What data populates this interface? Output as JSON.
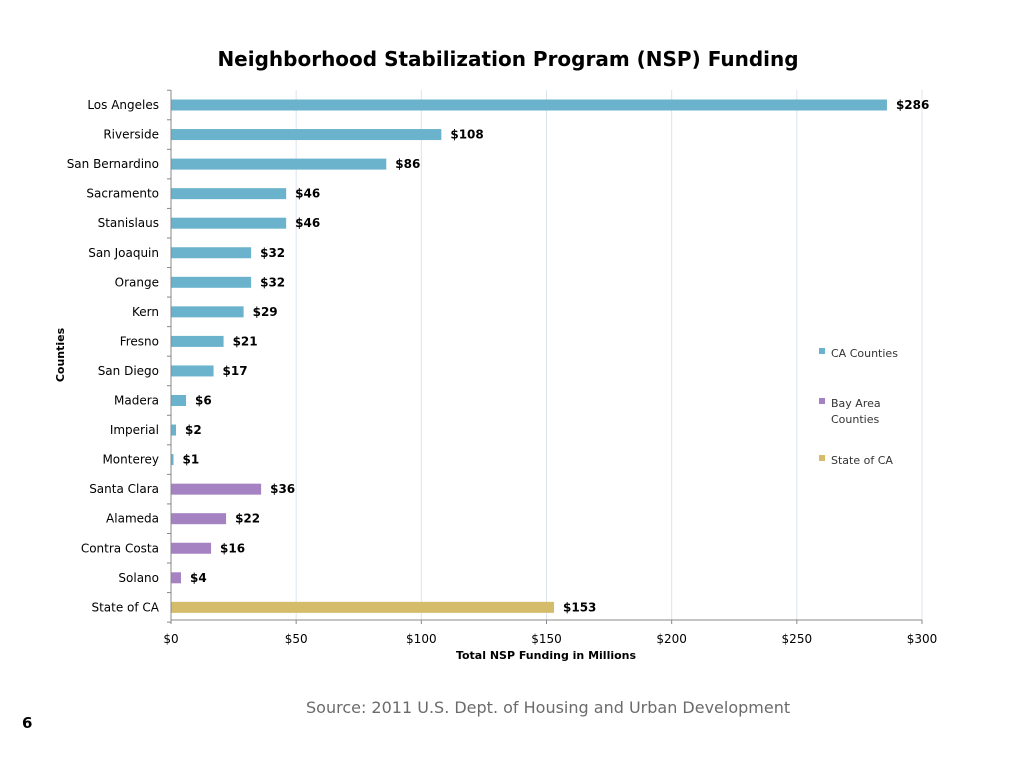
{
  "chart_data": {
    "type": "bar",
    "orientation": "horizontal",
    "title": "Neighborhood Stabilization Program (NSP) Funding",
    "xlabel": "Total NSP Funding in Millions",
    "ylabel": "Counties",
    "xlim": [
      0,
      300
    ],
    "x_ticks": [
      0,
      50,
      100,
      150,
      200,
      250,
      300
    ],
    "x_tick_labels": [
      "$0",
      "$50",
      "$100",
      "$150",
      "$200",
      "$250",
      "$300"
    ],
    "grid": "vertical",
    "legend_position": "right",
    "legend": [
      {
        "name": "CA Counties",
        "color": "#6bb3cc"
      },
      {
        "name": "Bay Area Counties",
        "color": "#a582c2"
      },
      {
        "name": "State of CA",
        "color": "#d4bc6a"
      }
    ],
    "bars": [
      {
        "category": "Los Angeles",
        "value": 286,
        "label": "$286",
        "group": 0
      },
      {
        "category": "Riverside",
        "value": 108,
        "label": "$108",
        "group": 0
      },
      {
        "category": "San Bernardino",
        "value": 86,
        "label": "$86",
        "group": 0
      },
      {
        "category": "Sacramento",
        "value": 46,
        "label": "$46",
        "group": 0
      },
      {
        "category": "Stanislaus",
        "value": 46,
        "label": "$46",
        "group": 0
      },
      {
        "category": "San Joaquin",
        "value": 32,
        "label": "$32",
        "group": 0
      },
      {
        "category": "Orange",
        "value": 32,
        "label": "$32",
        "group": 0
      },
      {
        "category": "Kern",
        "value": 29,
        "label": "$29",
        "group": 0
      },
      {
        "category": "Fresno",
        "value": 21,
        "label": "$21",
        "group": 0
      },
      {
        "category": "San Diego",
        "value": 17,
        "label": "$17",
        "group": 0
      },
      {
        "category": "Madera",
        "value": 6,
        "label": "$6",
        "group": 0
      },
      {
        "category": "Imperial",
        "value": 2,
        "label": "$2",
        "group": 0
      },
      {
        "category": "Monterey",
        "value": 1,
        "label": "$1",
        "group": 0
      },
      {
        "category": "Santa Clara",
        "value": 36,
        "label": "$36",
        "group": 1
      },
      {
        "category": "Alameda",
        "value": 22,
        "label": "$22",
        "group": 1
      },
      {
        "category": "Contra Costa",
        "value": 16,
        "label": "$16",
        "group": 1
      },
      {
        "category": "Solano",
        "value": 4,
        "label": "$4",
        "group": 1
      },
      {
        "category": "State of CA",
        "value": 153,
        "label": "$153",
        "group": 2
      }
    ]
  },
  "footer": {
    "source": "Source:  2011 U.S. Dept. of Housing and Urban Development",
    "slide_number": "6"
  }
}
